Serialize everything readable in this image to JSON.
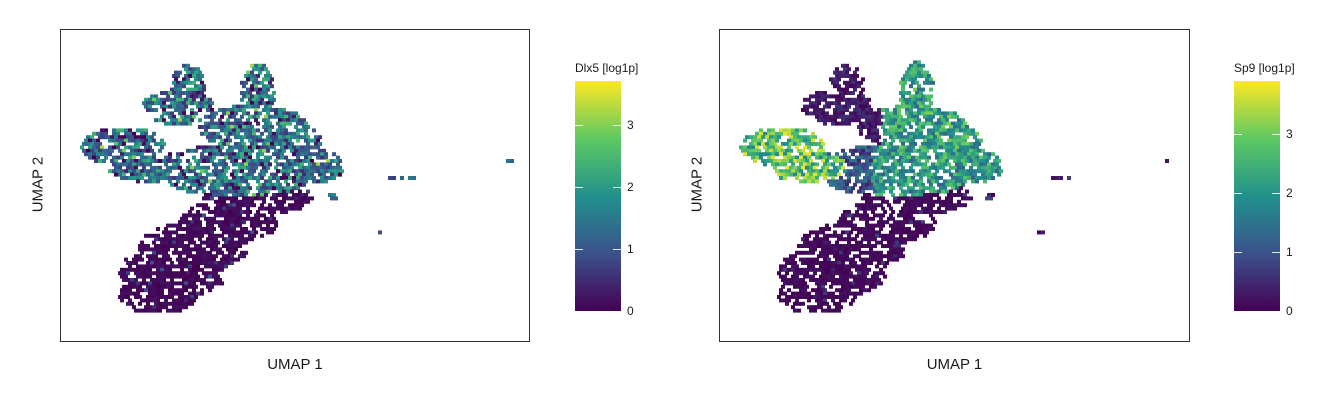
{
  "chart_data": [
    {
      "type": "hexbin",
      "xlabel": "UMAP 1",
      "ylabel": "UMAP 2",
      "legend_title": "Dlx5 [log1p]",
      "colorbar_ticks": [
        0,
        1,
        2,
        3
      ],
      "color_range": [
        0,
        3.7
      ],
      "colormap": [
        "#440154",
        "#3b528b",
        "#21918c",
        "#5ec962",
        "#fde725"
      ],
      "gene": "Dlx5",
      "axis_ticks_shown": false,
      "grid": false,
      "legend_position": "right"
    },
    {
      "type": "hexbin",
      "xlabel": "UMAP 1",
      "ylabel": "UMAP 2",
      "legend_title": "Sp9 [log1p]",
      "colorbar_ticks": [
        0,
        1,
        2,
        3
      ],
      "color_range": [
        0,
        3.9
      ],
      "colormap": [
        "#440154",
        "#3b528b",
        "#21918c",
        "#5ec962",
        "#fde725"
      ],
      "gene": "Sp9",
      "axis_ticks_shown": false,
      "grid": false,
      "legend_position": "right"
    }
  ]
}
